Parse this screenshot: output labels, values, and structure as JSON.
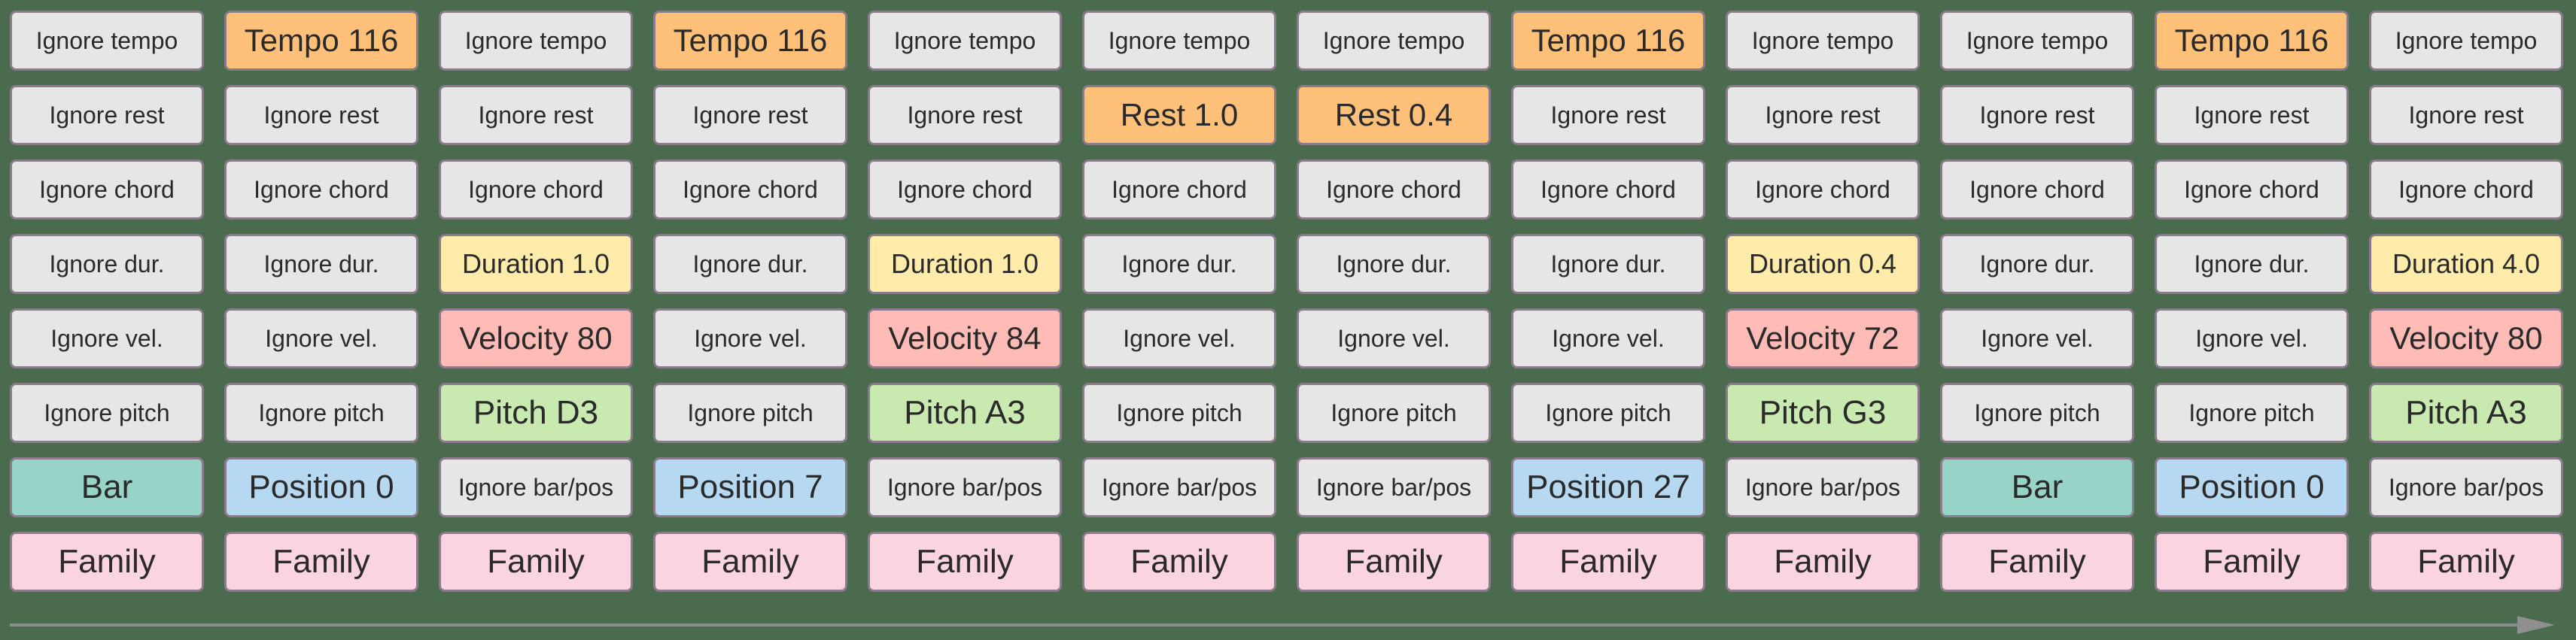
{
  "columns": [
    [
      "Ignore tempo",
      "Ignore rest",
      "Ignore chord",
      "Ignore dur.",
      "Ignore vel.",
      "Ignore pitch",
      "Bar",
      "Family"
    ],
    [
      "Tempo 116",
      "Ignore rest",
      "Ignore chord",
      "Ignore dur.",
      "Ignore vel.",
      "Ignore pitch",
      "Position 0",
      "Family"
    ],
    [
      "Ignore tempo",
      "Ignore rest",
      "Ignore chord",
      "Duration 1.0",
      "Velocity 80",
      "Pitch D3",
      "Ignore bar/pos",
      "Family"
    ],
    [
      "Tempo 116",
      "Ignore rest",
      "Ignore chord",
      "Ignore dur.",
      "Ignore vel.",
      "Ignore pitch",
      "Position 7",
      "Family"
    ],
    [
      "Ignore tempo",
      "Ignore rest",
      "Ignore chord",
      "Duration 1.0",
      "Velocity 84",
      "Pitch A3",
      "Ignore bar/pos",
      "Family"
    ],
    [
      "Ignore tempo",
      "Rest 1.0",
      "Ignore chord",
      "Ignore dur.",
      "Ignore vel.",
      "Ignore pitch",
      "Ignore bar/pos",
      "Family"
    ],
    [
      "Ignore tempo",
      "Rest 0.4",
      "Ignore chord",
      "Ignore dur.",
      "Ignore vel.",
      "Ignore pitch",
      "Ignore bar/pos",
      "Family"
    ],
    [
      "Tempo 116",
      "Ignore rest",
      "Ignore chord",
      "Ignore dur.",
      "Ignore vel.",
      "Ignore pitch",
      "Position 27",
      "Family"
    ],
    [
      "Ignore tempo",
      "Ignore rest",
      "Ignore chord",
      "Duration 0.4",
      "Velocity 72",
      "Pitch G3",
      "Ignore bar/pos",
      "Family"
    ],
    [
      "Ignore tempo",
      "Ignore rest",
      "Ignore chord",
      "Ignore dur.",
      "Ignore vel.",
      "Ignore pitch",
      "Bar",
      "Family"
    ],
    [
      "Tempo 116",
      "Ignore rest",
      "Ignore chord",
      "Ignore dur.",
      "Ignore vel.",
      "Ignore pitch",
      "Position 0",
      "Family"
    ],
    [
      "Ignore tempo",
      "Ignore rest",
      "Ignore chord",
      "Duration 4.0",
      "Velocity 80",
      "Pitch A3",
      "Ignore bar/pos",
      "Family"
    ]
  ],
  "colors": {
    "background": "#4a6b4d",
    "ignore": "#e6e6e6",
    "tempo": "#ffc07a",
    "rest": "#ffc07a",
    "duration": "#ffecaa",
    "velocity": "#ffbcb6",
    "pitch": "#c8eab0",
    "bar": "#97d4c7",
    "position": "#b6d8f1",
    "family": "#fad4e0",
    "border": "#8a7a8a",
    "arrow": "#8f8f8f"
  },
  "timeline": {
    "icon": "arrow-right-icon"
  }
}
